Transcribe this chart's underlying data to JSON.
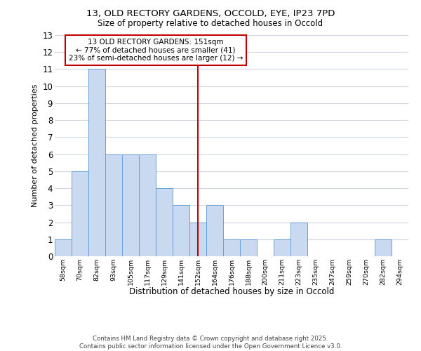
{
  "title_line1": "13, OLD RECTORY GARDENS, OCCOLD, EYE, IP23 7PD",
  "title_line2": "Size of property relative to detached houses in Occold",
  "xlabel": "Distribution of detached houses by size in Occold",
  "ylabel": "Number of detached properties",
  "categories": [
    "58sqm",
    "70sqm",
    "82sqm",
    "93sqm",
    "105sqm",
    "117sqm",
    "129sqm",
    "141sqm",
    "152sqm",
    "164sqm",
    "176sqm",
    "188sqm",
    "200sqm",
    "211sqm",
    "223sqm",
    "235sqm",
    "247sqm",
    "259sqm",
    "270sqm",
    "282sqm",
    "294sqm"
  ],
  "values": [
    1,
    5,
    11,
    6,
    6,
    6,
    4,
    3,
    2,
    3,
    1,
    1,
    0,
    1,
    2,
    0,
    0,
    0,
    0,
    1,
    0
  ],
  "bar_color": "#c9d9ef",
  "bar_edge_color": "#6a9fd8",
  "vline_color": "#c00000",
  "annotation_text": "13 OLD RECTORY GARDENS: 151sqm\n← 77% of detached houses are smaller (41)\n23% of semi-detached houses are larger (12) →",
  "annotation_box_color": "#ffffff",
  "annotation_box_edge": "#c00000",
  "ylim": [
    0,
    13
  ],
  "yticks": [
    0,
    1,
    2,
    3,
    4,
    5,
    6,
    7,
    8,
    9,
    10,
    11,
    12,
    13
  ],
  "footer": "Contains HM Land Registry data © Crown copyright and database right 2025.\nContains public sector information licensed under the Open Government Licence v3.0.",
  "bg_color": "#ffffff",
  "plot_bg_color": "#ffffff",
  "grid_color": "#d0d8e8"
}
